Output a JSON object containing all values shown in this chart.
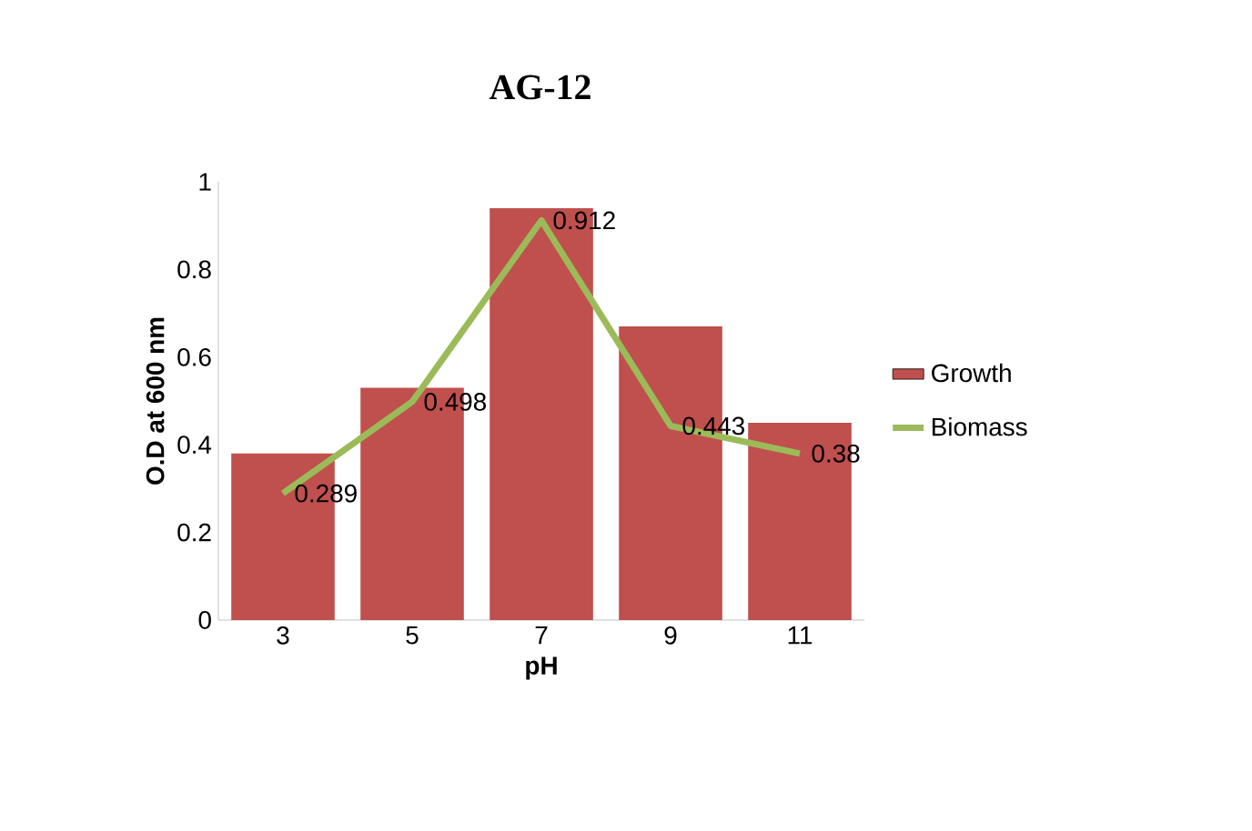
{
  "chart_data": {
    "type": "bar",
    "title": "AG-12",
    "xlabel": "pH",
    "ylabel": "O.D at 600 nm",
    "categories": [
      "3",
      "5",
      "7",
      "9",
      "11"
    ],
    "series": [
      {
        "name": "Growth",
        "color": "#c0504d",
        "values": [
          0.38,
          0.53,
          0.94,
          0.67,
          0.45
        ]
      },
      {
        "name": "Biomass",
        "type": "line",
        "color": "#9bbb59",
        "values": [
          0.289,
          0.498,
          0.912,
          0.443,
          0.38
        ],
        "value_labels": [
          "0.289",
          "0.498",
          "0.912",
          "0.443",
          "0.38"
        ]
      }
    ],
    "ylim": [
      0,
      1
    ],
    "yticks": [
      0,
      0.2,
      0.4,
      0.6,
      0.8,
      1
    ],
    "legend": "right"
  }
}
